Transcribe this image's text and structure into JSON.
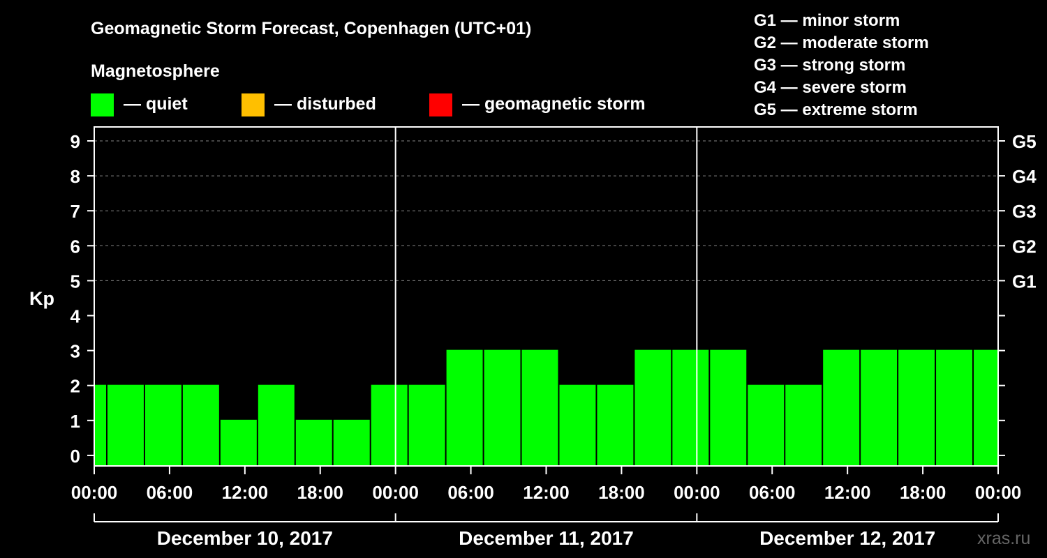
{
  "title": "Geomagnetic Storm Forecast, Copenhagen (UTC+01)",
  "subtitle": "Magnetosphere",
  "legend": [
    {
      "label": "— quiet",
      "color": "#00ff00"
    },
    {
      "label": "— disturbed",
      "color": "#ffbf00"
    },
    {
      "label": "— geomagnetic storm",
      "color": "#ff0000"
    }
  ],
  "g_scale": [
    "G1 — minor storm",
    "G2 — moderate storm",
    "G3 — strong storm",
    "G4 — severe storm",
    "G5 — extreme storm"
  ],
  "watermark": "xras.ru",
  "chart_data": {
    "type": "bar",
    "ylabel": "Kp",
    "ylim": [
      0,
      9
    ],
    "yticks": [
      "0",
      "1",
      "2",
      "3",
      "4",
      "5",
      "6",
      "7",
      "8",
      "9"
    ],
    "right_ticks": [
      {
        "kp": 5,
        "label": "G1"
      },
      {
        "kp": 6,
        "label": "G2"
      },
      {
        "kp": 7,
        "label": "G3"
      },
      {
        "kp": 8,
        "label": "G4"
      },
      {
        "kp": 9,
        "label": "G5"
      }
    ],
    "grid": "horizontal dashed at Kp 5-9",
    "xlim_hours": [
      0,
      72
    ],
    "x_tick_labels": [
      "00:00",
      "06:00",
      "12:00",
      "18:00",
      "00:00",
      "06:00",
      "12:00",
      "18:00",
      "00:00",
      "06:00",
      "12:00",
      "18:00",
      "00:00"
    ],
    "days": [
      "December 10, 2017",
      "December 11, 2017",
      "December 12, 2017"
    ],
    "bar_interval_hours": 3,
    "bar_start_hours": [
      -2,
      1,
      4,
      7,
      10,
      13,
      16,
      19,
      22,
      25,
      28,
      31,
      34,
      37,
      40,
      43,
      46,
      49,
      52,
      55,
      58,
      61,
      64,
      67,
      70
    ],
    "values": [
      2,
      2,
      2,
      2,
      1,
      2,
      1,
      1,
      2,
      2,
      3,
      3,
      3,
      2,
      2,
      3,
      3,
      3,
      2,
      2,
      3,
      3,
      3,
      3,
      3
    ],
    "bar_color": "#00ff00"
  }
}
